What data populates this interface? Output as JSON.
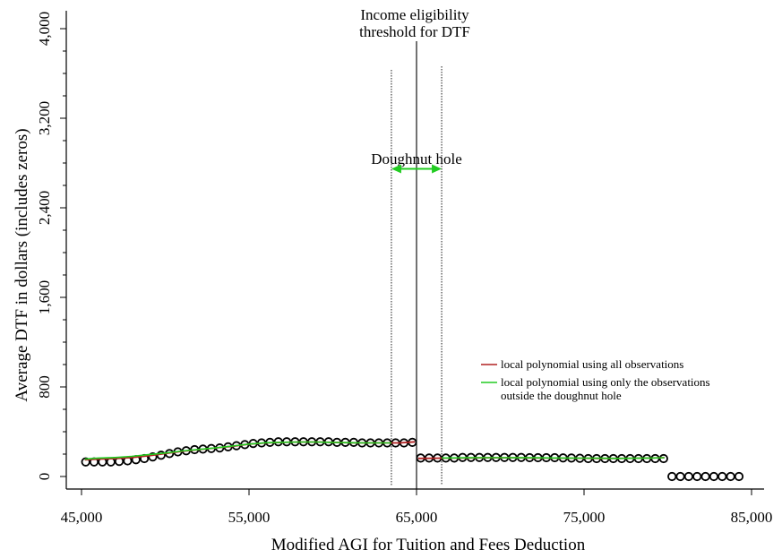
{
  "chart_data": {
    "type": "scatter",
    "xlabel": "Modified AGI for Tuition and Fees Deduction",
    "ylabel": "Average DTF in dollars (includes zeros)",
    "xlim": [
      44600,
      85700
    ],
    "ylim": [
      -100,
      4080
    ],
    "x_ticks": [
      45000,
      55000,
      65000,
      75000,
      85000
    ],
    "x_tick_labels": [
      "45,000",
      "55,000",
      "65,000",
      "75,000",
      "85,000"
    ],
    "y_ticks": [
      0,
      800,
      1600,
      2400,
      3200,
      4000
    ],
    "y_tick_labels": [
      "0",
      "800",
      "1,600",
      "2,400",
      "3,200",
      "4,000"
    ],
    "y_minor_step": 200,
    "grid": false,
    "threshold": {
      "x": 65000,
      "label_lines": [
        "Income eligibility",
        "threshold for DTF"
      ]
    },
    "doughnut_hole": {
      "x_left": 63500,
      "x_right": 66500,
      "label": "Doughnut hole",
      "arrow_y": 2700
    },
    "points": {
      "x": [
        45250,
        45750,
        46250,
        46750,
        47250,
        47750,
        48250,
        48750,
        49250,
        49750,
        50250,
        50750,
        51250,
        51750,
        52250,
        52750,
        53250,
        53750,
        54250,
        54750,
        55250,
        55750,
        56250,
        56750,
        57250,
        57750,
        58250,
        58750,
        59250,
        59750,
        60250,
        60750,
        61250,
        61750,
        62250,
        62750,
        63250,
        63750,
        64250,
        64750,
        65250,
        65750,
        66250,
        66750,
        67250,
        67750,
        68250,
        68750,
        69250,
        69750,
        70250,
        70750,
        71250,
        71750,
        72250,
        72750,
        73250,
        73750,
        74250,
        74750,
        75250,
        75750,
        76250,
        76750,
        77250,
        77750,
        78250,
        78750,
        79250,
        79750,
        80250,
        80750,
        81250,
        81750,
        82250,
        82750,
        83250,
        83750,
        84250
      ],
      "y": [
        130,
        130,
        130,
        130,
        135,
        140,
        150,
        160,
        175,
        190,
        205,
        220,
        230,
        240,
        245,
        250,
        255,
        265,
        275,
        285,
        295,
        300,
        305,
        310,
        310,
        310,
        310,
        310,
        310,
        310,
        305,
        305,
        305,
        300,
        300,
        300,
        300,
        300,
        300,
        305,
        165,
        165,
        165,
        165,
        165,
        170,
        170,
        170,
        170,
        170,
        170,
        170,
        170,
        168,
        168,
        168,
        168,
        166,
        165,
        163,
        160,
        160,
        160,
        160,
        160,
        160,
        160,
        160,
        160,
        160,
        0,
        0,
        0,
        0,
        0,
        0,
        0,
        0,
        0
      ]
    },
    "series": [
      {
        "name": "local polynomial using all observations",
        "color": "#b22222",
        "segments": [
          {
            "x": [
              45200,
              46000,
              47000,
              48000,
              49000,
              50000,
              51000,
              52000,
              53000,
              54000,
              55000,
              56000,
              57000,
              58000,
              59000,
              60000,
              61000,
              62000,
              63000,
              64000,
              64900
            ],
            "y": [
              150,
              155,
              160,
              170,
              185,
              205,
              225,
              240,
              255,
              270,
              290,
              300,
              305,
              308,
              308,
              305,
              302,
              300,
              300,
              300,
              310
            ]
          },
          {
            "x": [
              65100,
              66000,
              67000,
              68000,
              69000,
              70000,
              71000,
              72000,
              73000,
              74000,
              75000,
              76000,
              77000,
              78000,
              79000,
              79800
            ],
            "y": [
              162,
              163,
              165,
              166,
              167,
              167,
              167,
              166,
              165,
              164,
              163,
              162,
              162,
              163,
              165,
              168
            ]
          }
        ]
      },
      {
        "name": "local polynomial using only the observations outside the doughnut hole",
        "legend_lines": [
          "local polynomial using only the observations",
          "outside the doughnut hole"
        ],
        "color": "#22cc22",
        "segments": [
          {
            "x": [
              45200,
              46000,
              47000,
              48000,
              49000,
              50000,
              51000,
              52000,
              53000,
              54000,
              55000,
              56000,
              57000,
              58000,
              59000,
              60000,
              61000,
              62000,
              63000,
              63500
            ],
            "y": [
              155,
              165,
              170,
              180,
              195,
              210,
              228,
              242,
              255,
              272,
              290,
              302,
              306,
              308,
              308,
              305,
              302,
              300,
              300,
              300
            ]
          },
          {
            "x": [
              66500,
              67000,
              68000,
              69000,
              70000,
              71000,
              72000,
              73000,
              74000,
              75000,
              76000,
              77000,
              78000,
              79000,
              79800
            ],
            "y": [
              166,
              166,
              167,
              168,
              168,
              167,
              167,
              166,
              165,
              164,
              163,
              162,
              163,
              165,
              168
            ]
          }
        ]
      }
    ]
  }
}
